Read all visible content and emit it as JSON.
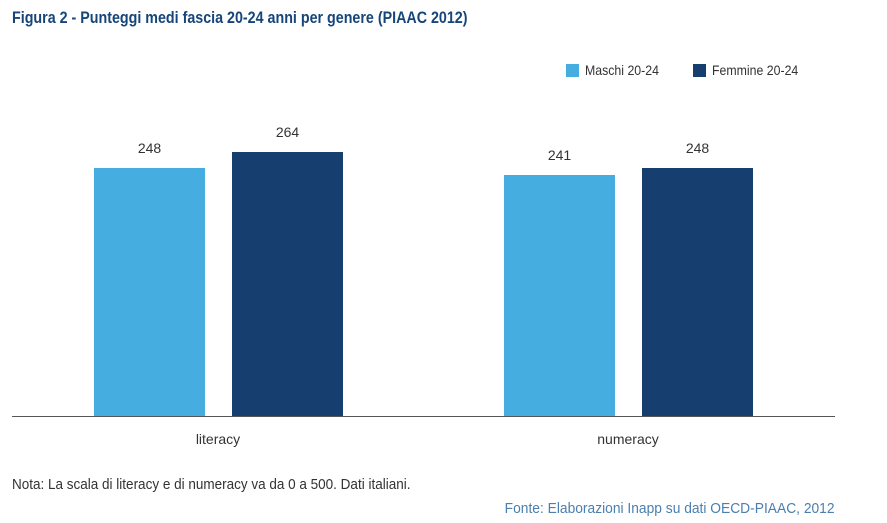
{
  "title": "Figura 2 - Punteggi medi fascia 20-24 anni per genere (PIAAC 2012)",
  "note": "Nota: La scala di literacy e di numeracy va da 0 a 500. Dati italiani.",
  "source": "Fonte: Elaborazioni Inapp su dati OECD-PIAAC, 2012",
  "colors": {
    "maschi": "#46ade0",
    "femmine": "#163f6f",
    "title": "#16457a",
    "source": "#4a7fb0",
    "axis": "#555555"
  },
  "chart_data": {
    "type": "bar",
    "title": "Figura 2 - Punteggi medi fascia 20-24 anni per genere (PIAAC 2012)",
    "xlabel": "",
    "ylabel": "",
    "categories": [
      "literacy",
      "numeracy"
    ],
    "series": [
      {
        "name": "Maschi 20-24",
        "values": [
          248,
          241
        ],
        "color": "#46ade0"
      },
      {
        "name": "Femmine 20-24",
        "values": [
          264,
          248
        ],
        "color": "#163f6f"
      }
    ],
    "ylim": [
      0,
      300
    ],
    "grid": false,
    "legend_position": "top-right",
    "data_labels": true
  }
}
